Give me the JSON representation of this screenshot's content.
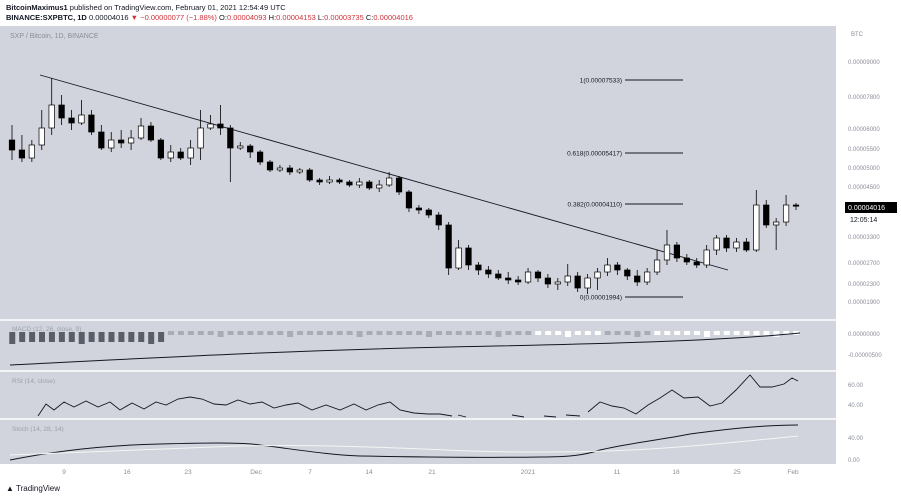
{
  "header": {
    "author": "BitcoinMaximus1",
    "published": "published on TradingView.com, February 01, 2021 12:54:49 UTC",
    "symbol_line": "BINANCE:SXPBTC, 1D",
    "price": "0.00004016",
    "change": "−0.00000077 (−1.88%)",
    "o_label": "O:",
    "o_value": "0.00004093",
    "h_label": "H:",
    "h_value": "0.00004153",
    "l_label": "L:",
    "l_value": "0.00003735",
    "c_label": "C:",
    "c_value": "0.00004016"
  },
  "chart_title": "SXP / Bitcoin, 1D, BINANCE",
  "axis": {
    "unit": "BTC",
    "price_ticks": [
      "0.00009000",
      "0.00007800",
      "0.00006000",
      "0.00005500",
      "0.00005000",
      "0.00004500",
      "0.00003300",
      "0.00002700",
      "0.00002300",
      "0.00001900"
    ],
    "current_price": "0.00004016",
    "countdown": "12:05:14",
    "macd_ticks": [
      "0.00000000",
      "-0.00000500"
    ],
    "rsi_ticks": [
      "60.00",
      "40.00"
    ],
    "stoch_ticks": [
      "40.00",
      "0.00"
    ]
  },
  "fib_levels": [
    {
      "label": "1(0.00007533)"
    },
    {
      "label": "0.618(0.00005417)"
    },
    {
      "label": "0.382(0.00004110)"
    },
    {
      "label": "0(0.00001994)"
    }
  ],
  "indicators": {
    "macd": "MACD (12, 26, close, 9)",
    "rsi": "RSI (14, close)",
    "stoch": "Stoch (14, 28, 14)"
  },
  "time_labels": [
    "9",
    "16",
    "23",
    "Dec",
    "7",
    "14",
    "21",
    "2021",
    "11",
    "18",
    "25",
    "Feb"
  ],
  "footer": "TradingView",
  "colors": {
    "plot_bg": "#d1d4dc",
    "up": "#ffffff",
    "down": "#000000",
    "accent": "#d0333b"
  }
}
